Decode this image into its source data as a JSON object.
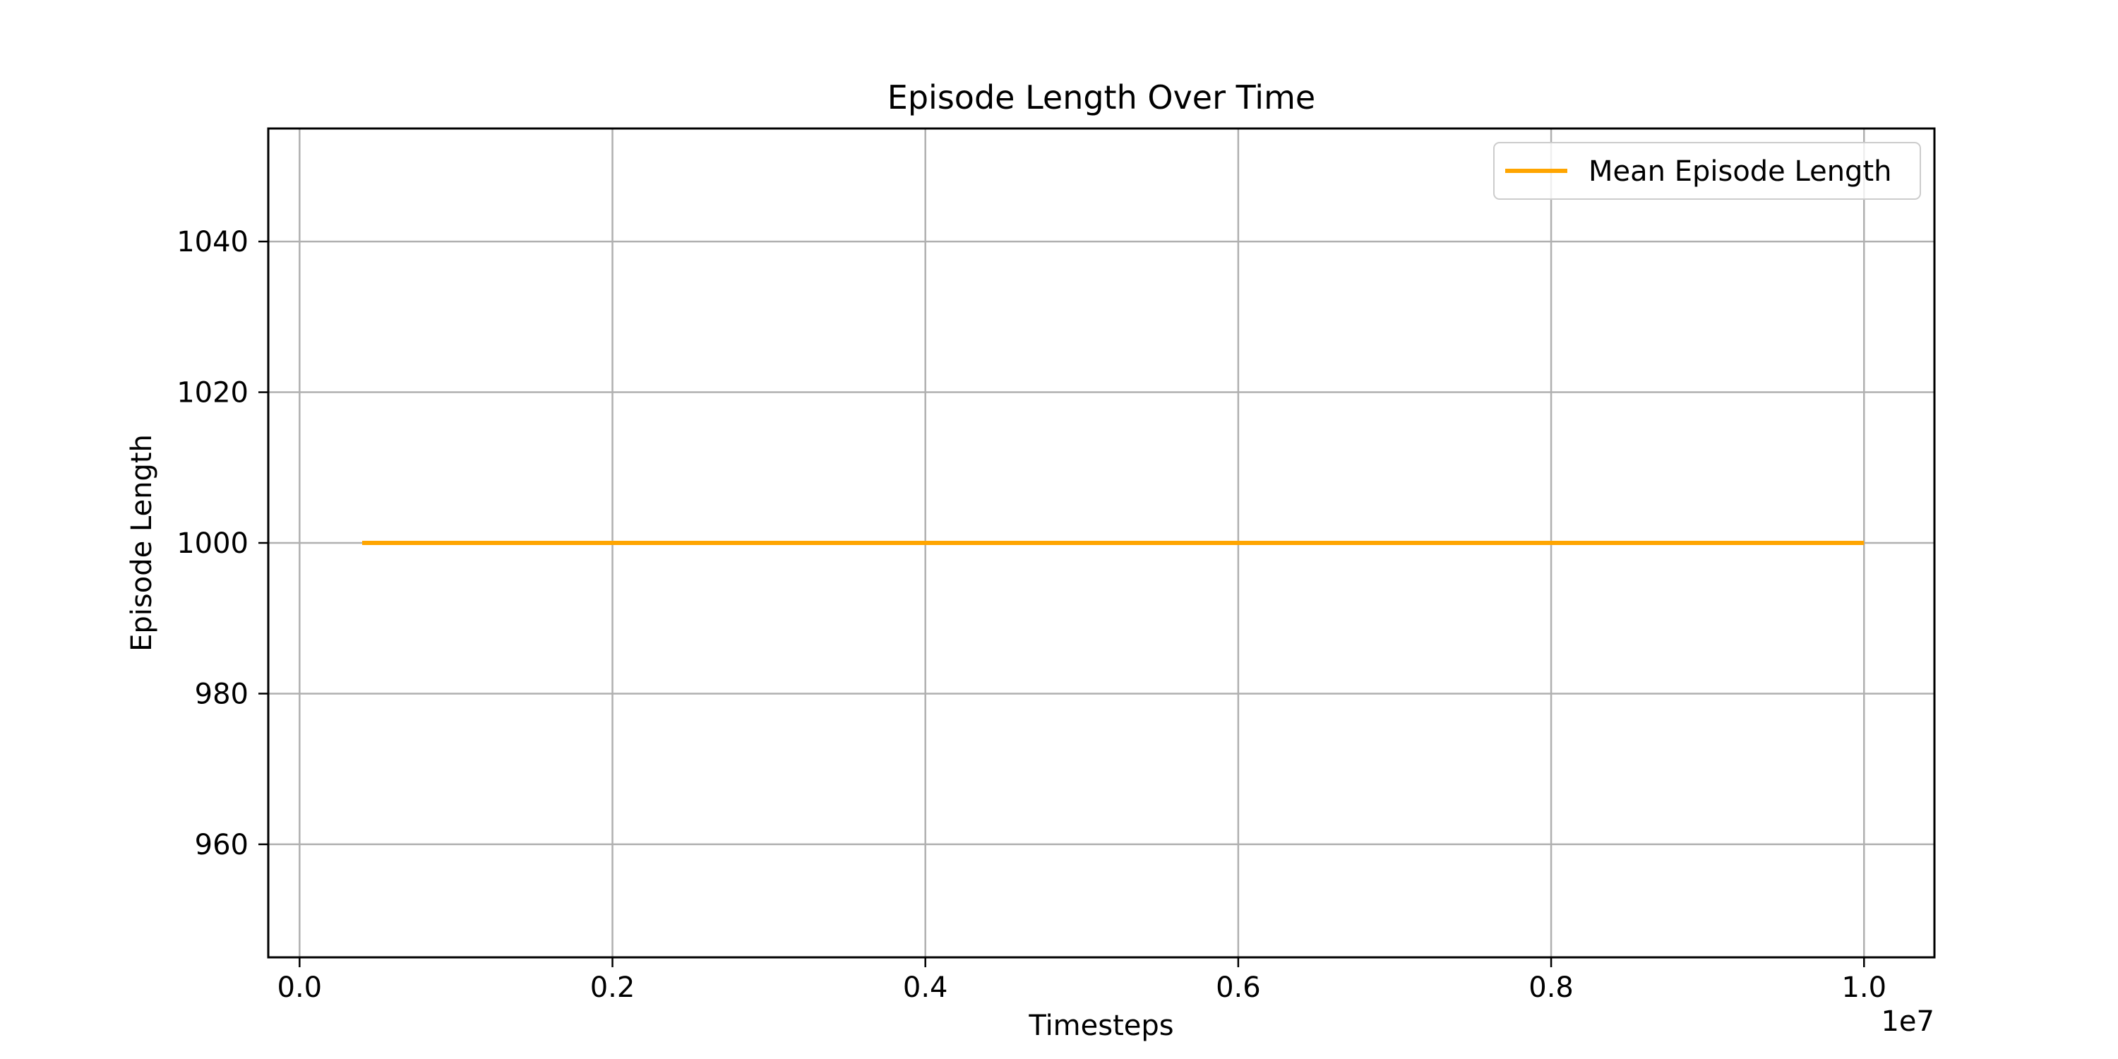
{
  "chart_data": {
    "type": "line",
    "title": "Episode Length Over Time",
    "xlabel": "Timesteps",
    "ylabel": "Episode Length",
    "x_offset_label": "1e7",
    "xlim": [
      -0.02,
      1.045
    ],
    "ylim": [
      945,
      1055
    ],
    "x_ticks": [
      0.0,
      0.2,
      0.4,
      0.6,
      0.8,
      1.0
    ],
    "x_tick_labels": [
      "0.0",
      "0.2",
      "0.4",
      "0.6",
      "0.8",
      "1.0"
    ],
    "y_ticks": [
      960,
      980,
      1000,
      1020,
      1040
    ],
    "y_tick_labels": [
      "960",
      "980",
      "1000",
      "1020",
      "1040"
    ],
    "grid": true,
    "legend_position": "top-right",
    "series": [
      {
        "name": "Mean Episode Length",
        "color": "#ffa500",
        "x": [
          0.04,
          0.1,
          0.2,
          0.3,
          0.4,
          0.5,
          0.6,
          0.7,
          0.8,
          0.9,
          1.0
        ],
        "y": [
          1000,
          1000,
          1000,
          1000,
          1000,
          1000,
          1000,
          1000,
          1000,
          1000,
          1000
        ]
      }
    ]
  }
}
